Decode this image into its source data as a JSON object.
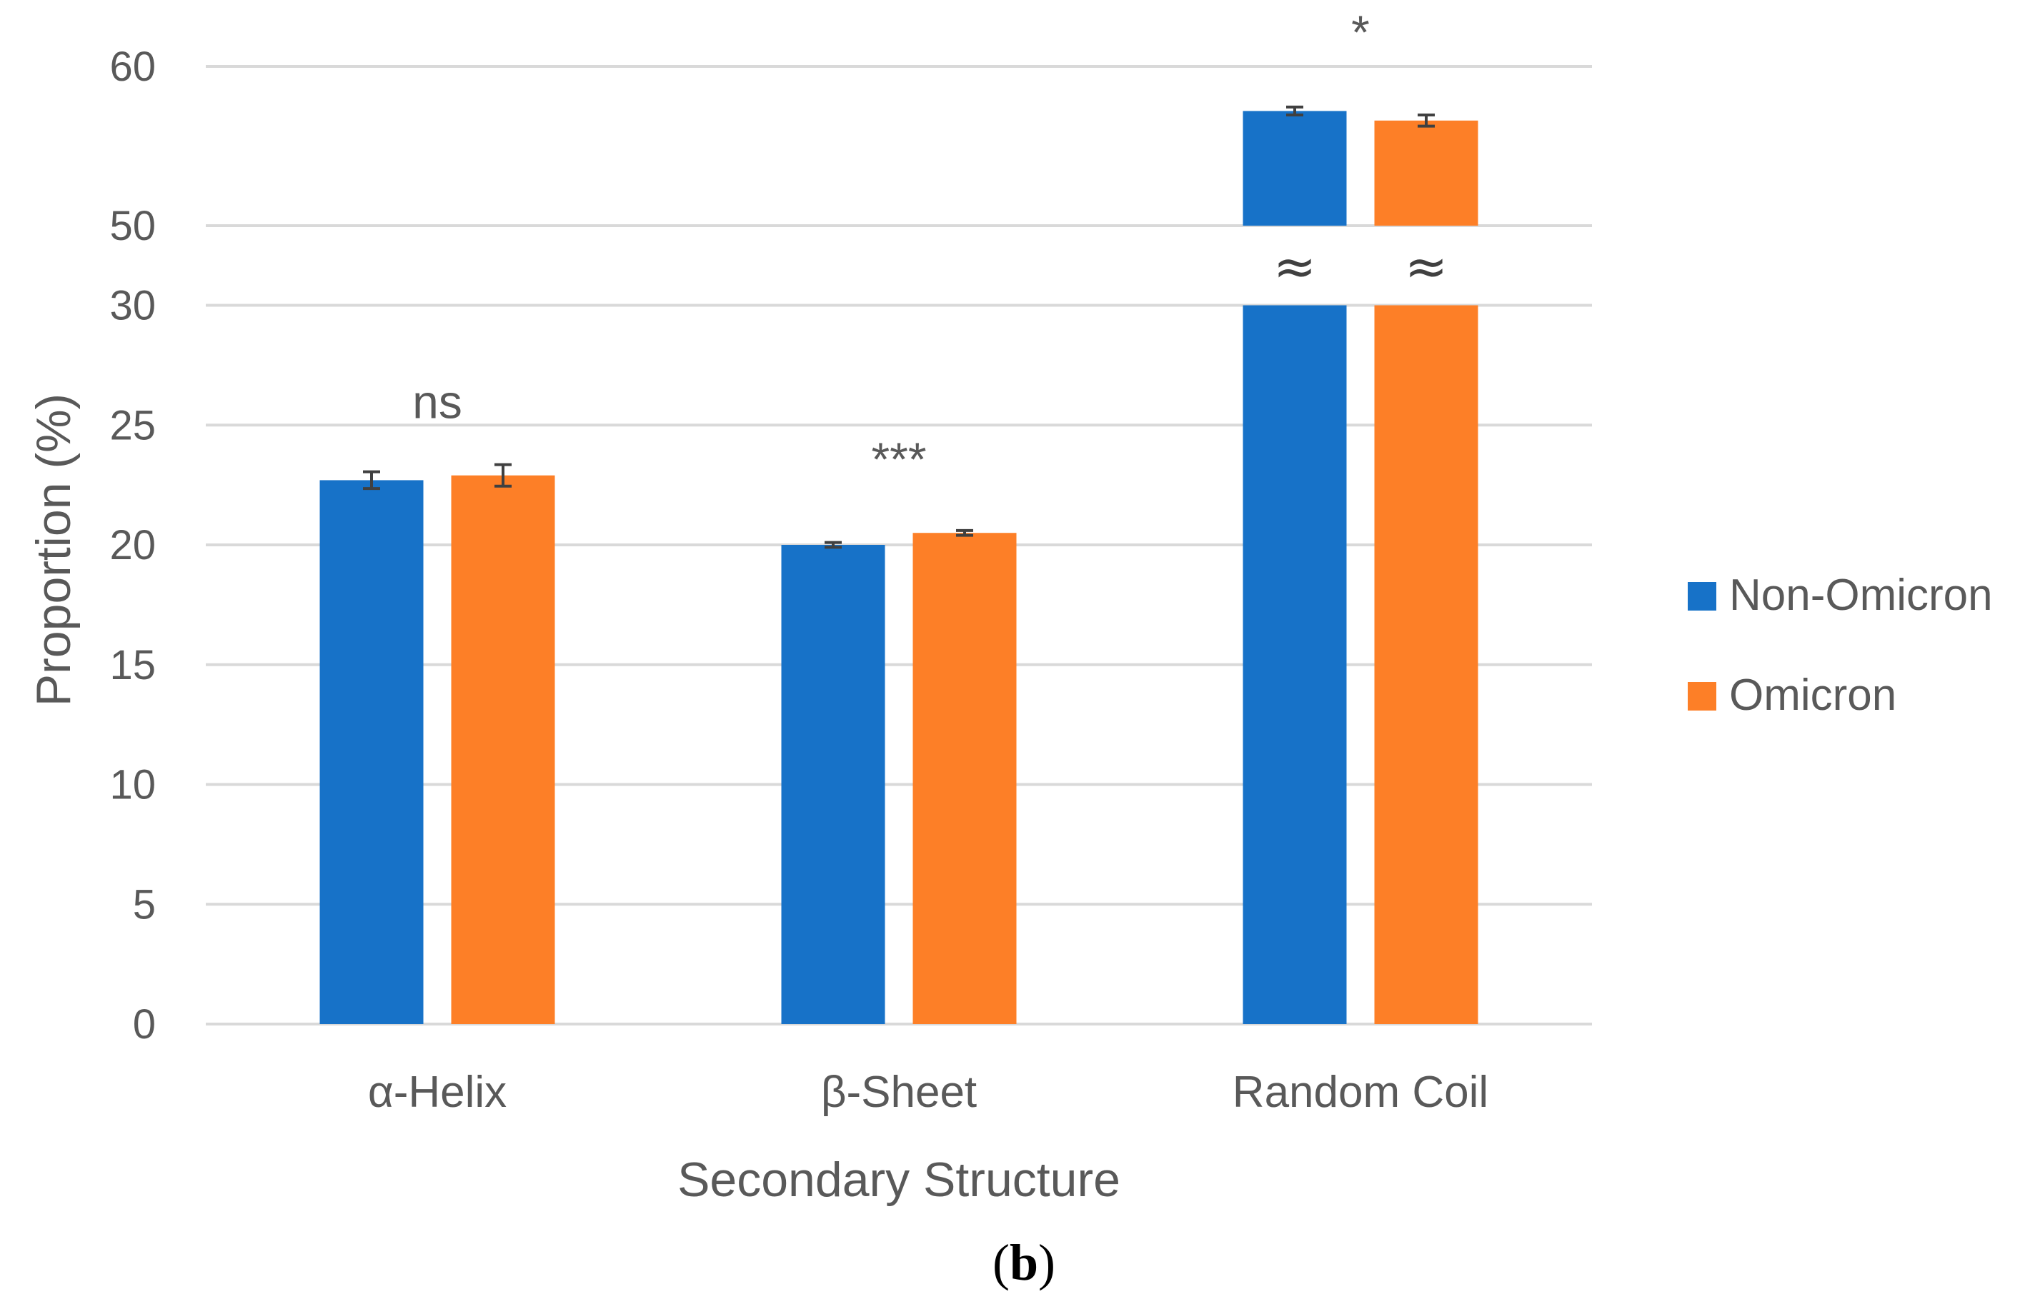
{
  "chart_data": {
    "type": "bar",
    "title": "",
    "categories": [
      "α-Helix",
      "β-Sheet",
      "Random Coil"
    ],
    "series": [
      {
        "name": "Non-Omicron",
        "color": "#1772c8",
        "values": [
          22.7,
          20.0,
          57.2
        ],
        "errors": [
          0.35,
          0.1,
          0.25
        ]
      },
      {
        "name": "Omicron",
        "color": "#fd7f27",
        "values": [
          22.9,
          20.5,
          56.6
        ],
        "errors": [
          0.45,
          0.1,
          0.35
        ]
      }
    ],
    "xlabel": "Secondary Structure",
    "ylabel": "Proportion (%)",
    "ylim": [
      0,
      60
    ],
    "axis_break": {
      "from": 30,
      "to": 50,
      "symbol": "≈"
    },
    "lower_ticks": [
      "0",
      "5",
      "10",
      "15",
      "20",
      "25",
      "30"
    ],
    "upper_ticks": [
      "50",
      "60"
    ],
    "significance": [
      "ns",
      "***",
      "*"
    ],
    "legend_position": "right",
    "grid": true,
    "panel_label": {
      "open": "(",
      "letter": "b",
      "close": ")"
    }
  }
}
